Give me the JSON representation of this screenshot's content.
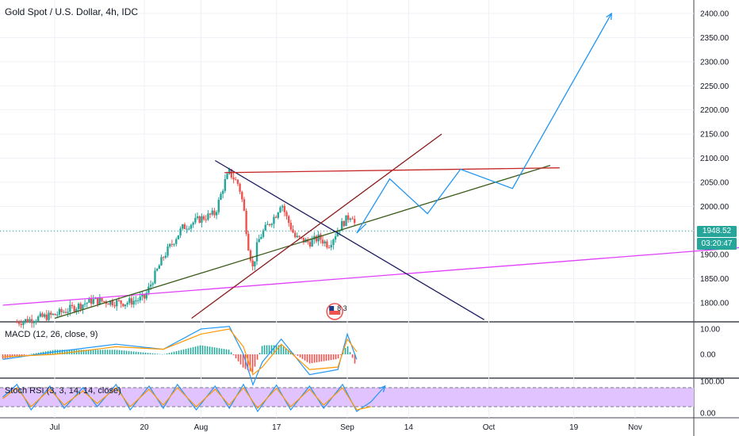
{
  "header": {
    "title": "Gold Spot / U.S. Dollar, 4h, IDC"
  },
  "price_tags": {
    "last_price": "1948.52",
    "countdown": "03:20:47"
  },
  "badge": {
    "text": "8 3"
  },
  "indicators": {
    "macd": {
      "label": "MACD (12, 26, close, 9)"
    },
    "stoch": {
      "label": "Stoch RSI (3, 3, 14, 14, close)"
    }
  },
  "colors": {
    "up": "#26a69a",
    "down": "#ef5350",
    "blue": "#2196f3",
    "orange": "#ff9800",
    "magenta": "#e040fb",
    "darkred": "#8b1a1a",
    "olive": "#3a5a1a",
    "navy": "#1a1a5e",
    "rsi_band": "#e1c4ff"
  },
  "chart_data": [
    {
      "type": "candlestick",
      "title": "Gold Spot / U.S. Dollar, 4h, IDC",
      "x_ticks": [
        "Jul",
        "20",
        "Aug",
        "17",
        "Sep",
        "14",
        "Oct",
        "19",
        "Nov"
      ],
      "y_ticks": [
        "2400.00",
        "2350.00",
        "2300.00",
        "2250.00",
        "2200.00",
        "2150.00",
        "2100.00",
        "2050.00",
        "2000.00",
        "1950.00",
        "1900.00",
        "1850.00",
        "1800.00"
      ],
      "ylim": [
        1770,
        2420
      ],
      "last_price": 1948.52,
      "price_path": [
        [
          "Jun 23",
          1760
        ],
        [
          "Jul 1",
          1775
        ],
        [
          "Jul 9",
          1805
        ],
        [
          "Jul 16",
          1800
        ],
        [
          "Jul 20",
          1810
        ],
        [
          "Jul 24",
          1895
        ],
        [
          "Jul 28",
          1955
        ],
        [
          "Aug 1",
          1975
        ],
        [
          "Aug 4",
          1985
        ],
        [
          "Aug 6",
          2050
        ],
        [
          "Aug 7",
          2070
        ],
        [
          "Aug 9",
          2045
        ],
        [
          "Aug 10",
          2000
        ],
        [
          "Aug 11",
          1920
        ],
        [
          "Aug 12",
          1870
        ],
        [
          "Aug 13",
          1925
        ],
        [
          "Aug 14",
          1945
        ],
        [
          "Aug 17",
          1985
        ],
        [
          "Aug 18",
          2010
        ],
        [
          "Aug 19",
          1980
        ],
        [
          "Aug 21",
          1935
        ],
        [
          "Aug 24",
          1925
        ],
        [
          "Aug 26",
          1935
        ],
        [
          "Aug 28",
          1920
        ],
        [
          "Aug 31",
          1965
        ],
        [
          "Sep 1",
          1975
        ],
        [
          "Sep 2",
          1985
        ],
        [
          "Sep 3",
          1948
        ]
      ],
      "drawings": [
        {
          "name": "magenta-support",
          "color": "#e040fb",
          "points": [
            [
              "Jun 20",
              1795
            ],
            [
              "Nov 24",
              1915
            ]
          ]
        },
        {
          "name": "olive-trendline",
          "color": "#3a5a1a",
          "points": [
            [
              "Jul 1",
              1768
            ],
            [
              "Oct 14",
              2085
            ]
          ]
        },
        {
          "name": "navy-trendline",
          "color": "#1a1a5e",
          "points": [
            [
              "Aug 4",
              2095
            ],
            [
              "Sep 30",
              1765
            ]
          ]
        },
        {
          "name": "darkred-channel",
          "color": "#8b1a1a",
          "points": [
            [
              "Jul 30",
              1768
            ],
            [
              "Sep 21",
              2150
            ]
          ]
        },
        {
          "name": "red-resistance",
          "color": "#c62828",
          "points": [
            [
              "Aug 6",
              2070
            ],
            [
              "Oct 16",
              2080
            ]
          ]
        },
        {
          "name": "projection-path",
          "color": "#2196f3",
          "points": [
            [
              "Sep 3",
              1945
            ],
            [
              "Sep 10",
              2057
            ],
            [
              "Sep 18",
              1985
            ],
            [
              "Sep 25",
              2077
            ],
            [
              "Oct 6",
              2037
            ],
            [
              "Oct 27",
              2400
            ]
          ]
        },
        {
          "name": "projection-arrow",
          "color": "#2196f3",
          "points": [
            [
              "Sep 3",
              1945
            ],
            [
              "Sep 5",
              1964
            ]
          ]
        }
      ]
    },
    {
      "type": "line",
      "name": "MACD (12, 26, close, 9)",
      "y_ticks": [
        "10.00",
        "0.00"
      ],
      "ylim": [
        -16,
        12
      ],
      "series": [
        {
          "color": "#2196f3",
          "points": [
            [
              "Jun 20",
              -2
            ],
            [
              "Jul 1",
              1
            ],
            [
              "Jul 14",
              4
            ],
            [
              "Jul 24",
              2
            ],
            [
              "Aug 1",
              10
            ],
            [
              "Aug 7",
              11
            ],
            [
              "Aug 10",
              0
            ],
            [
              "Aug 12",
              -12
            ],
            [
              "Aug 14",
              -3
            ],
            [
              "Aug 18",
              6
            ],
            [
              "Aug 24",
              -8
            ],
            [
              "Aug 30",
              -6
            ],
            [
              "Sep 1",
              8
            ],
            [
              "Sep 3",
              -2
            ]
          ]
        },
        {
          "color": "#ff9800",
          "points": [
            [
              "Jun 20",
              -1
            ],
            [
              "Jul 1",
              0
            ],
            [
              "Jul 14",
              3
            ],
            [
              "Jul 24",
              2
            ],
            [
              "Aug 1",
              8
            ],
            [
              "Aug 7",
              10
            ],
            [
              "Aug 10",
              3
            ],
            [
              "Aug 12",
              -8
            ],
            [
              "Aug 14",
              -5
            ],
            [
              "Aug 18",
              4
            ],
            [
              "Aug 24",
              -6
            ],
            [
              "Aug 30",
              -5
            ],
            [
              "Sep 1",
              6
            ],
            [
              "Sep 3",
              1
            ]
          ]
        }
      ]
    },
    {
      "type": "line",
      "name": "Stoch RSI (3, 3, 14, 14, close)",
      "y_ticks": [
        "100.00",
        "0.00"
      ],
      "ylim": [
        0,
        100
      ],
      "band": [
        20,
        80
      ],
      "series": [
        {
          "color": "#2196f3",
          "points": [
            [
              "Jun 20",
              50
            ],
            [
              "Jun 23",
              90
            ],
            [
              "Jun 26",
              10
            ],
            [
              "Jun 30",
              85
            ],
            [
              "Jul 3",
              15
            ],
            [
              "Jul 7",
              80
            ],
            [
              "Jul 10",
              20
            ],
            [
              "Jul 14",
              90
            ],
            [
              "Jul 17",
              10
            ],
            [
              "Jul 21",
              85
            ],
            [
              "Jul 24",
              15
            ],
            [
              "Jul 27",
              90
            ],
            [
              "Jul 31",
              10
            ],
            [
              "Aug 4",
              85
            ],
            [
              "Aug 7",
              15
            ],
            [
              "Aug 10",
              90
            ],
            [
              "Aug 13",
              5
            ],
            [
              "Aug 17",
              88
            ],
            [
              "Aug 20",
              10
            ],
            [
              "Aug 24",
              85
            ],
            [
              "Aug 27",
              15
            ],
            [
              "Aug 31",
              90
            ],
            [
              "Sep 3",
              5
            ],
            [
              "Sep 6",
              35
            ],
            [
              "Sep 9",
              85
            ]
          ]
        },
        {
          "color": "#ff9800",
          "points": [
            [
              "Jun 20",
              45
            ],
            [
              "Jun 23",
              80
            ],
            [
              "Jun 26",
              20
            ],
            [
              "Jun 30",
              75
            ],
            [
              "Jul 3",
              25
            ],
            [
              "Jul 7",
              70
            ],
            [
              "Jul 10",
              30
            ],
            [
              "Jul 14",
              80
            ],
            [
              "Jul 17",
              20
            ],
            [
              "Jul 21",
              75
            ],
            [
              "Jul 24",
              25
            ],
            [
              "Jul 27",
              80
            ],
            [
              "Jul 31",
              20
            ],
            [
              "Aug 4",
              75
            ],
            [
              "Aug 7",
              25
            ],
            [
              "Aug 10",
              80
            ],
            [
              "Aug 13",
              15
            ],
            [
              "Aug 17",
              78
            ],
            [
              "Aug 20",
              20
            ],
            [
              "Aug 24",
              75
            ],
            [
              "Aug 27",
              25
            ],
            [
              "Aug 31",
              80
            ],
            [
              "Sep 3",
              10
            ],
            [
              "Sep 6",
              20
            ]
          ]
        }
      ]
    }
  ]
}
